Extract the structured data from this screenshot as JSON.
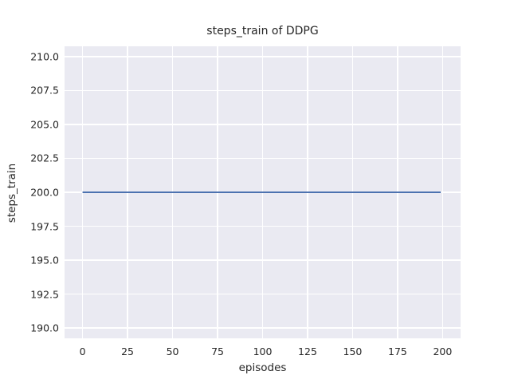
{
  "chart_data": {
    "type": "line",
    "title": "steps_train of DDPG",
    "xlabel": "episodes",
    "ylabel": "steps_train",
    "xlim": [
      -10,
      210
    ],
    "ylim": [
      189.25,
      210.75
    ],
    "grid": true,
    "legend": "none",
    "x_ticks": {
      "values": [
        0,
        25,
        50,
        75,
        100,
        125,
        150,
        175,
        200
      ],
      "labels": [
        "0",
        "25",
        "50",
        "75",
        "100",
        "125",
        "150",
        "175",
        "200"
      ]
    },
    "y_ticks": {
      "values": [
        190.0,
        192.5,
        195.0,
        197.5,
        200.0,
        202.5,
        205.0,
        207.5,
        210.0
      ],
      "labels": [
        "190.0",
        "192.5",
        "195.0",
        "197.5",
        "200.0",
        "202.5",
        "205.0",
        "207.5",
        "210.0"
      ]
    },
    "series": [
      {
        "name": "steps_train",
        "color": "#4c72b0",
        "line_width": 2,
        "x": [
          0,
          199
        ],
        "y": [
          200,
          200
        ]
      }
    ],
    "styles": {
      "figure_bg": "#ffffff",
      "plot_bg": "#eaeaf2",
      "grid_color": "#ffffff",
      "text_color": "#262626"
    }
  }
}
